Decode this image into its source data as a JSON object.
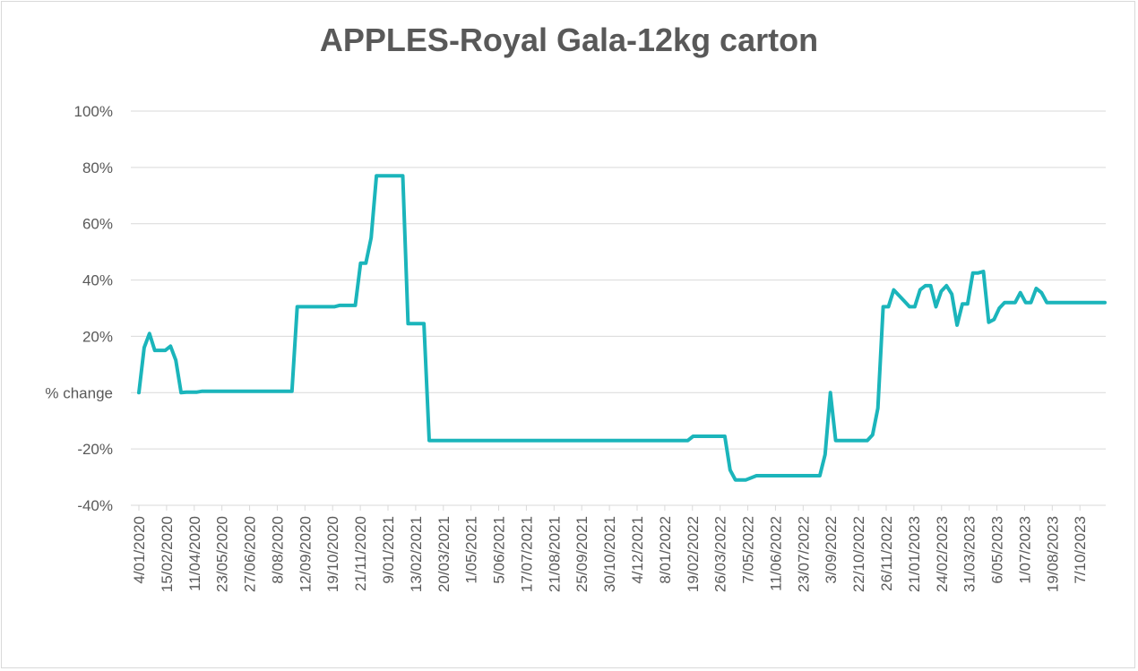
{
  "chart_data": {
    "type": "line",
    "title": "APPLES-Royal Gala-12kg carton",
    "ylabel": "",
    "xlabel": "",
    "ylim": [
      -40,
      100
    ],
    "y_ticks": [
      -40,
      -20,
      0,
      20,
      40,
      60,
      80,
      100
    ],
    "y_tick_labels": [
      "-40%",
      "-20%",
      "% change",
      "20%",
      "40%",
      "60%",
      "80%",
      "100%"
    ],
    "x_tick_labels": [
      "4/01/2020",
      "15/02/2020",
      "11/04/2020",
      "23/05/2020",
      "27/06/2020",
      "8/08/2020",
      "12/09/2020",
      "19/10/2020",
      "21/11/2020",
      "9/01/2021",
      "13/02/2021",
      "20/03/2021",
      "1/05/2021",
      "5/06/2021",
      "17/07/2021",
      "21/08/2021",
      "25/09/2021",
      "30/10/2021",
      "4/12/2021",
      "8/01/2022",
      "19/02/2022",
      "26/03/2022",
      "7/05/2022",
      "11/06/2022",
      "23/07/2022",
      "3/09/2022",
      "22/10/2022",
      "26/11/2022",
      "21/01/2023",
      "24/02/2023",
      "31/03/2023",
      "6/05/2023",
      "1/07/2023",
      "19/08/2023",
      "7/10/2023"
    ],
    "grid": true,
    "line_color": "#1BB5BB",
    "series": [
      {
        "name": "",
        "points": [
          [
            0,
            0
          ],
          [
            1,
            16
          ],
          [
            2,
            21
          ],
          [
            3,
            15
          ],
          [
            5,
            15
          ],
          [
            6,
            16.5
          ],
          [
            7,
            11.5
          ],
          [
            8,
            0
          ],
          [
            9,
            0.2
          ],
          [
            11,
            0.2
          ],
          [
            12,
            0.5
          ],
          [
            29,
            0.5
          ],
          [
            30,
            30.5
          ],
          [
            37,
            30.5
          ],
          [
            38,
            31
          ],
          [
            41,
            31
          ],
          [
            42,
            46
          ],
          [
            43,
            46
          ],
          [
            44,
            55
          ],
          [
            45,
            77
          ],
          [
            50,
            77
          ],
          [
            51,
            24.5
          ],
          [
            54,
            24.5
          ],
          [
            55,
            -17
          ],
          [
            104,
            -17
          ],
          [
            105,
            -15.5
          ],
          [
            111,
            -15.5
          ],
          [
            112,
            -27.5
          ],
          [
            113,
            -31
          ],
          [
            115,
            -31
          ],
          [
            117,
            -29.5
          ],
          [
            128,
            -29.5
          ],
          [
            129,
            -29.5
          ],
          [
            130,
            -22
          ],
          [
            131,
            0
          ],
          [
            132,
            -17
          ],
          [
            138,
            -17
          ],
          [
            139,
            -15
          ],
          [
            140,
            -5.5
          ],
          [
            141,
            30.5
          ],
          [
            142,
            30.5
          ],
          [
            143,
            36.5
          ],
          [
            145,
            32.5
          ],
          [
            146,
            30.5
          ],
          [
            147,
            30.5
          ],
          [
            148,
            36.5
          ],
          [
            149,
            38
          ],
          [
            150,
            38
          ],
          [
            151,
            30.5
          ],
          [
            152,
            36
          ],
          [
            153,
            38
          ],
          [
            154,
            35
          ],
          [
            155,
            24
          ],
          [
            156,
            31.5
          ],
          [
            157,
            31.5
          ],
          [
            158,
            42.5
          ],
          [
            159,
            42.5
          ],
          [
            160,
            43
          ],
          [
            161,
            25
          ],
          [
            162,
            26
          ],
          [
            163,
            30
          ],
          [
            164,
            32
          ],
          [
            166,
            32
          ],
          [
            167,
            35.5
          ],
          [
            168,
            32
          ],
          [
            169,
            32
          ],
          [
            170,
            37
          ],
          [
            171,
            35.5
          ],
          [
            172,
            32
          ],
          [
            183,
            32
          ]
        ]
      }
    ]
  }
}
